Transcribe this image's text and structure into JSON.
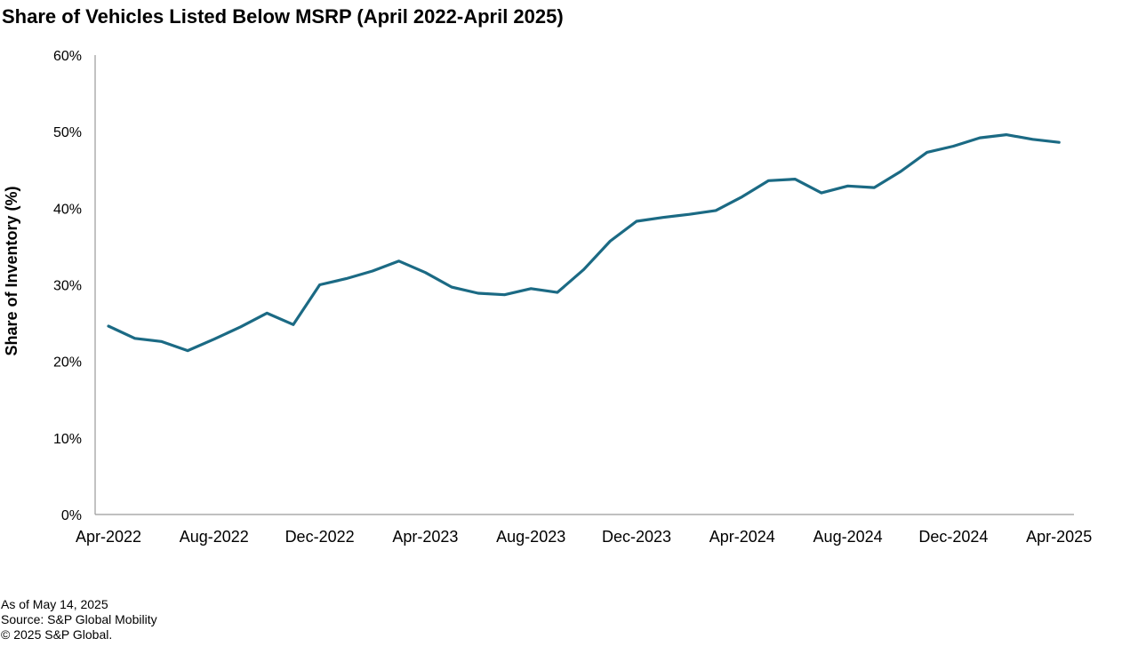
{
  "chart_data": {
    "type": "line",
    "title": "Share of Vehicles Listed Below MSRP (April 2022-April 2025)",
    "xlabel": "",
    "ylabel": "Share of Inventory (%)",
    "ylim": [
      0,
      60
    ],
    "y_ticks": [
      "0%",
      "10%",
      "20%",
      "30%",
      "40%",
      "50%",
      "60%"
    ],
    "x_tick_labels": [
      "Apr-2022",
      "Aug-2022",
      "Dec-2022",
      "Apr-2023",
      "Aug-2023",
      "Dec-2023",
      "Apr-2024",
      "Aug-2024",
      "Dec-2024",
      "Apr-2025"
    ],
    "grid": false,
    "legend": "none",
    "line_color": "#1b6a84",
    "x": [
      "Apr-2022",
      "May-2022",
      "Jun-2022",
      "Jul-2022",
      "Aug-2022",
      "Sep-2022",
      "Oct-2022",
      "Nov-2022",
      "Dec-2022",
      "Jan-2023",
      "Feb-2023",
      "Mar-2023",
      "Apr-2023",
      "May-2023",
      "Jun-2023",
      "Jul-2023",
      "Aug-2023",
      "Sep-2023",
      "Oct-2023",
      "Nov-2023",
      "Dec-2023",
      "Jan-2024",
      "Feb-2024",
      "Mar-2024",
      "Apr-2024",
      "May-2024",
      "Jun-2024",
      "Jul-2024",
      "Aug-2024",
      "Sep-2024",
      "Oct-2024",
      "Nov-2024",
      "Dec-2024",
      "Jan-2025",
      "Feb-2025",
      "Mar-2025",
      "Apr-2025"
    ],
    "series": [
      {
        "values": [
          24.6,
          23.0,
          22.6,
          21.4,
          22.9,
          24.5,
          26.3,
          24.8,
          30.0,
          30.8,
          31.8,
          33.1,
          31.6,
          29.7,
          28.9,
          28.7,
          29.5,
          29.0,
          32.0,
          35.7,
          38.3,
          38.8,
          39.2,
          39.7,
          41.5,
          43.6,
          43.8,
          42.0,
          42.9,
          42.7,
          44.8,
          47.3,
          48.1,
          49.2,
          49.6,
          49.0,
          48.6
        ]
      }
    ]
  },
  "notes": {
    "as_of": "As of May 14, 2025",
    "source": "Source: S&P Global Mobility",
    "copyright": "© 2025 S&P Global."
  }
}
